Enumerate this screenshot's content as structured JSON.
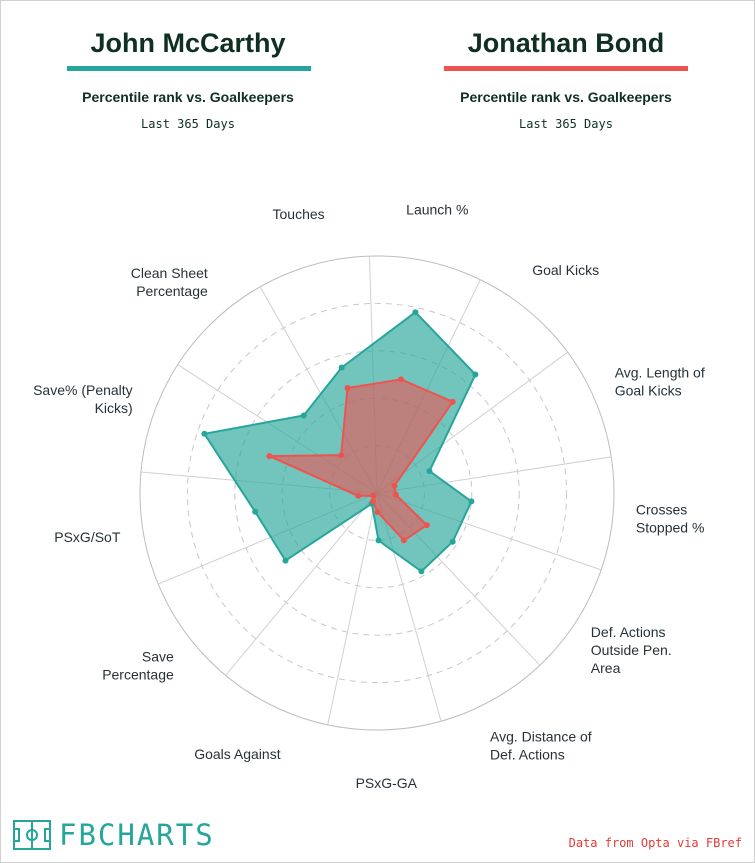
{
  "players": [
    {
      "name": "John McCarthy",
      "subtitle": "Percentile rank vs. Goalkeepers",
      "period": "Last 365 Days",
      "color": "#26a69a"
    },
    {
      "name": "Jonathan Bond",
      "subtitle": "Percentile rank vs. Goalkeepers",
      "period": "Last 365 Days",
      "color": "#ef5350"
    }
  ],
  "chart_data": {
    "type": "radar",
    "scale": [
      0,
      100
    ],
    "grid_rings": [
      20,
      40,
      60,
      80
    ],
    "axes": [
      "Goals Against",
      "Save\nPercentage",
      "PSxG/SoT",
      "Save% (Penalty\nKicks)",
      "Clean Sheet\nPercentage",
      "Touches",
      "Launch %",
      "Goal Kicks",
      "Avg. Length of\nGoal Kicks",
      "Crosses\nStopped %",
      "Def. Actions\nOutside Pen.\nArea",
      "Avg. Distance of\nDef. Actions",
      "PSxG-GA"
    ],
    "series": [
      {
        "name": "John McCarthy",
        "color": "#26a69a",
        "values": [
          5,
          48,
          52,
          77,
          45,
          55,
          78,
          65,
          24,
          40,
          38,
          38,
          20
        ]
      },
      {
        "name": "Jonathan Bond",
        "color": "#ef5350",
        "values": [
          4,
          2,
          8,
          48,
          22,
          46,
          49,
          50,
          8,
          8,
          25,
          23,
          8
        ]
      }
    ]
  },
  "footer": {
    "brand": "FBCHARTS",
    "source": "Data from Opta via FBref"
  }
}
